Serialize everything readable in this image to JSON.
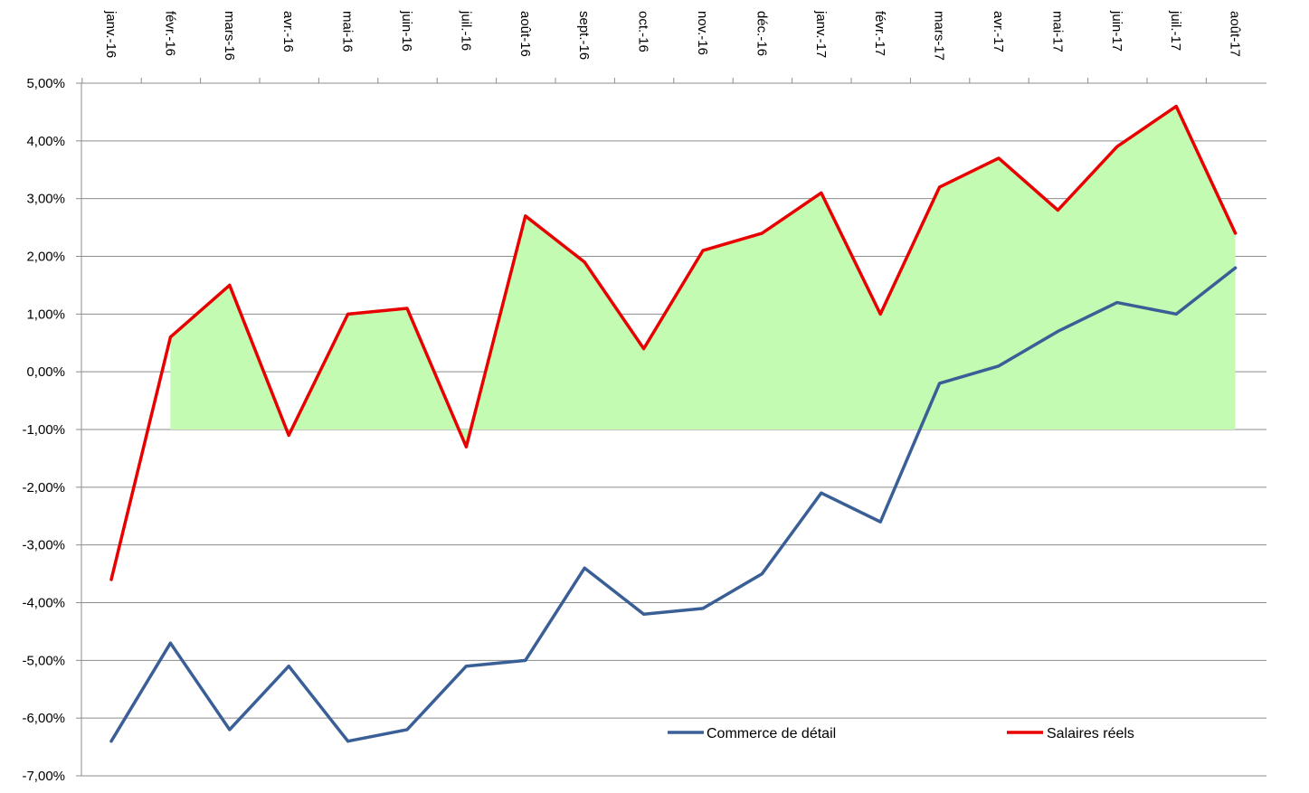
{
  "chart_data": {
    "type": "line",
    "title": "",
    "xlabel": "",
    "ylabel": "",
    "categories": [
      "janv.-16",
      "févr.-16",
      "mars-16",
      "avr.-16",
      "mai-16",
      "juin-16",
      "juil.-16",
      "août-16",
      "sept.-16",
      "oct.-16",
      "nov.-16",
      "déc.-16",
      "janv.-17",
      "févr.-17",
      "mars-17",
      "avr.-17",
      "mai-17",
      "juin-17",
      "juil.-17",
      "août-17"
    ],
    "y_ticks": [
      "-7,00%",
      "-6,00%",
      "-5,00%",
      "-4,00%",
      "-3,00%",
      "-2,00%",
      "-1,00%",
      "0,00%",
      "1,00%",
      "2,00%",
      "3,00%",
      "4,00%",
      "5,00%"
    ],
    "ylim": [
      -7,
      5
    ],
    "grid": true,
    "legend_position": "bottom-right",
    "series": [
      {
        "name": "Commerce de détail",
        "color": "#3a5f96",
        "values": [
          -6.4,
          -4.7,
          -6.2,
          -5.1,
          -6.4,
          -6.2,
          -5.1,
          -5.0,
          -3.4,
          -4.2,
          -4.1,
          -3.5,
          -2.1,
          -2.6,
          -0.2,
          0.1,
          0.7,
          1.2,
          1.0,
          1.8
        ]
      },
      {
        "name": "Salaires réels",
        "color": "#e80000",
        "values": [
          -3.6,
          0.6,
          1.5,
          -1.1,
          1.0,
          1.1,
          -1.3,
          2.7,
          1.9,
          0.4,
          2.1,
          2.4,
          3.1,
          1.0,
          3.2,
          3.7,
          2.8,
          3.9,
          4.6,
          2.4
        ]
      }
    ],
    "shaded_area": {
      "color": "#c3fbb2",
      "between": "Salaires réels and -1,00%",
      "baseline": -1.0,
      "from_category": "févr.-16",
      "to_category": "août-17"
    }
  }
}
